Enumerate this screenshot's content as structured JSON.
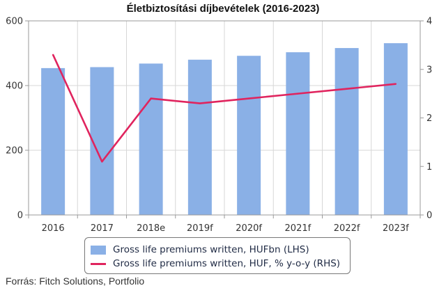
{
  "chart_data": {
    "type": "bar+line",
    "title": "Életbiztosítási díjbevételek (2016-2023)",
    "categories": [
      "2016",
      "2017",
      "2018e",
      "2019f",
      "2020f",
      "2021f",
      "2022f",
      "2023f"
    ],
    "series": [
      {
        "name": "Gross life premiums written, HUFbn (LHS)",
        "type": "bar",
        "axis": "left",
        "color": "#8ab0e6",
        "values": [
          454,
          457,
          468,
          480,
          492,
          503,
          516,
          531
        ]
      },
      {
        "name": "Gross life premiums written, HUF, % y-o-y (RHS)",
        "type": "line",
        "axis": "right",
        "color": "#e0245e",
        "values": [
          3.3,
          1.1,
          2.4,
          2.3,
          2.4,
          2.5,
          2.6,
          2.7
        ]
      }
    ],
    "y_left": {
      "min": 0,
      "max": 600,
      "ticks": [
        "0",
        "200",
        "400",
        "600"
      ]
    },
    "y_right": {
      "min": 0,
      "max": 4,
      "ticks": [
        "0",
        "1",
        "2",
        "3",
        "4"
      ]
    },
    "grid": true,
    "legend_placement": "bottom-center"
  },
  "source": "Forrás: Fitch Solutions, Portfolio"
}
